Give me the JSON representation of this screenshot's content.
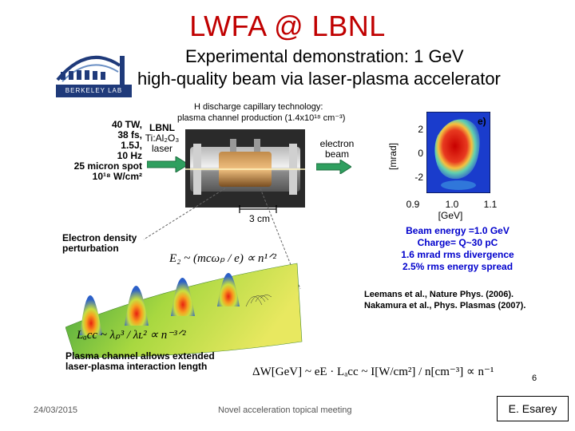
{
  "slide": {
    "title": "LWFA @ LBNL",
    "headline_line1": "Experimental demonstration: 1 GeV",
    "headline_line2": "high-quality beam via laser-plasma accelerator",
    "logo_text": "BERKELEY LAB",
    "capillary_line1": "H discharge capillary technology:",
    "capillary_line2": "plasma channel production (1.4x10¹⁸ cm⁻³)",
    "laser_params": [
      "40 TW,",
      "38 fs,",
      "1.5J,",
      "10 Hz",
      "25 micron spot",
      "10¹⁸ W/cm²"
    ],
    "laser_label": [
      "LBNL",
      "Ti:Al₂O₃",
      "laser"
    ],
    "electron_label": [
      "electron",
      "beam"
    ],
    "scale_label": "3 cm",
    "panel_label": "e)",
    "plot_ylabel": "[mrad]",
    "plot_yticks": [
      "2",
      "0",
      "-2"
    ],
    "plot_xticks": [
      "0.9",
      "1.0",
      "1.1"
    ],
    "plot_xlabel": "[GeV]",
    "beam_stats": [
      "Beam energy =1.0 GeV",
      "Charge= Q~30 pC",
      "1.6 mrad rms divergence",
      "2.5% rms energy spread"
    ],
    "density_label": [
      "Electron density",
      "perturbation"
    ],
    "ez_formula": "E₂ ~ (mcωₚ / e) ∝ n¹ᐟ²",
    "lacc_formula": "Lₐcc ~ λₚ³ / λʟ² ∝ n⁻³ᐟ²",
    "channel_label": [
      "Plasma channel allows extended",
      "laser-plasma interaction length"
    ],
    "references": [
      "Leemans et al., Nature Phys. (2006).",
      "Nakamura et al., Phys. Plasmas (2007)."
    ],
    "energy_formula": "ΔW[GeV] ~ eE · Lₐcc ~ I[W/cm²] / n[cm⁻³] ∝ n⁻¹",
    "page_number": "6"
  },
  "footer": {
    "date": "24/03/2015",
    "meeting": "Novel acceleration topical meeting",
    "presenter": "E. Esarey"
  }
}
